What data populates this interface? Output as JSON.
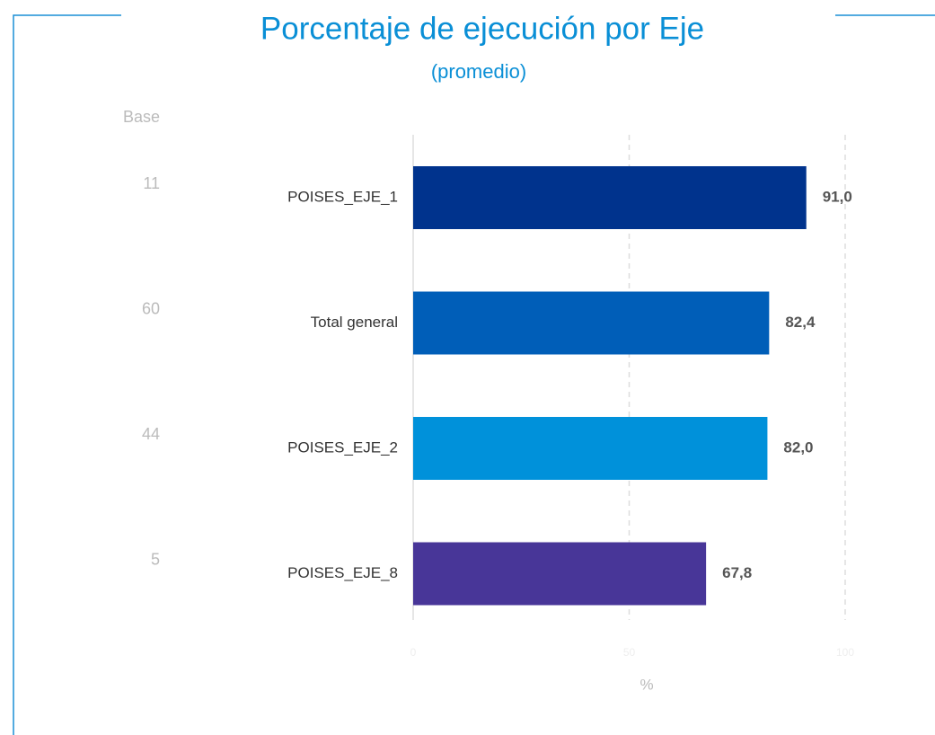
{
  "chart_data": {
    "type": "barh",
    "title": "Porcentaje de ejecución por Eje",
    "subtitle": "(promedio)",
    "base_header": "Base",
    "base": [
      11,
      60,
      44,
      5
    ],
    "categories": [
      "POISES_EJE_1",
      "Total general",
      "POISES_EJE_2",
      "POISES_EJE_8"
    ],
    "values": [
      91.0,
      82.4,
      82.0,
      67.8
    ],
    "value_labels": [
      "91,0",
      "82,4",
      "82,0",
      "67,8"
    ],
    "colors": [
      "#00338d",
      "#005eb8",
      "#0091da",
      "#483698"
    ],
    "xlim": [
      0,
      100
    ],
    "xticks": [
      0,
      50,
      100
    ],
    "xlabel": "%",
    "grid": true
  }
}
